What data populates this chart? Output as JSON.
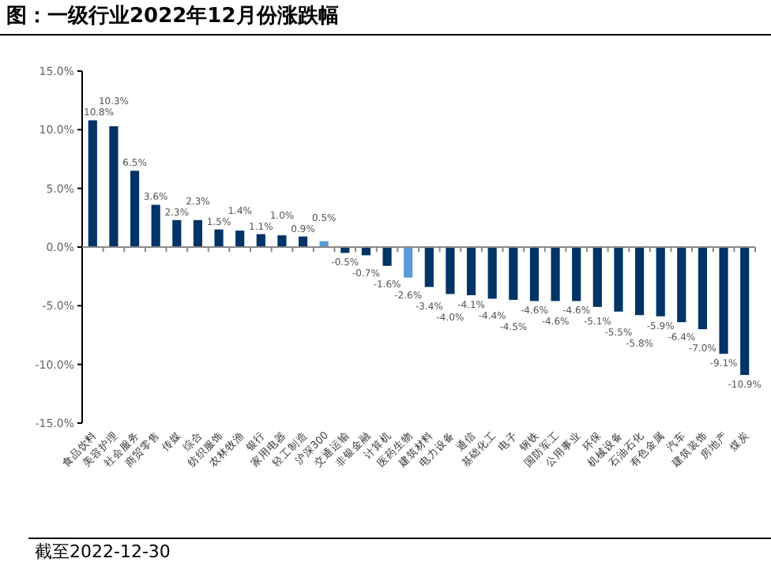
{
  "chart_data": {
    "type": "bar",
    "title": "图：一级行业2022年12月份涨跌幅",
    "categories": [
      "食品饮料",
      "美容护理",
      "社会服务",
      "商贸零售",
      "传媒",
      "综合",
      "纺织服饰",
      "农林牧渔",
      "银行",
      "家用电器",
      "轻工制造",
      "沪深300",
      "交通运输",
      "非银金融",
      "计算机",
      "医药生物",
      "建筑材料",
      "电力设备",
      "通信",
      "基础化工",
      "电子",
      "钢铁",
      "国防军工",
      "公用事业",
      "环保",
      "机械设备",
      "石油石化",
      "有色金属",
      "汽车",
      "建筑装饰",
      "房地产",
      "煤炭"
    ],
    "values": [
      10.8,
      10.3,
      6.5,
      3.6,
      2.3,
      2.3,
      1.5,
      1.4,
      1.1,
      1.0,
      0.9,
      0.5,
      -0.5,
      -0.7,
      -1.6,
      -2.6,
      -3.4,
      -4.0,
      -4.1,
      -4.4,
      -4.5,
      -4.6,
      -4.6,
      -4.6,
      -5.1,
      -5.5,
      -5.8,
      -5.9,
      -6.4,
      -7.0,
      -9.1,
      -10.9
    ],
    "colors": [
      "#003366",
      "#003366",
      "#003366",
      "#003366",
      "#003366",
      "#003366",
      "#003366",
      "#003366",
      "#003366",
      "#003366",
      "#003366",
      "#5b9bd5",
      "#003366",
      "#003366",
      "#003366",
      "#5b9bd5",
      "#003366",
      "#003366",
      "#003366",
      "#003366",
      "#003366",
      "#003366",
      "#003366",
      "#003366",
      "#003366",
      "#003366",
      "#003366",
      "#003366",
      "#003366",
      "#003366",
      "#003366",
      "#003366"
    ],
    "value_labels": [
      "10.8%",
      "10.3%",
      "6.5%",
      "3.6%",
      "2.3%",
      "2.3%",
      "1.5%",
      "1.4%",
      "1.1%",
      "1.0%",
      "0.9%",
      "0.5%",
      "-0.5%",
      "-0.7%",
      "-1.6%",
      "-2.6%",
      "-3.4%",
      "-4.0%",
      "-4.1%",
      "-4.4%",
      "-4.5%",
      "-4.6%",
      "-4.6%",
      "-4.6%",
      "-5.1%",
      "-5.5%",
      "-5.8%",
      "-5.9%",
      "-6.4%",
      "-7.0%",
      "-9.1%",
      "-10.9%"
    ],
    "ylim": [
      -15,
      15
    ],
    "yticks": [
      {
        "value": 15,
        "label": "15.0%"
      },
      {
        "value": 10,
        "label": "10.0%"
      },
      {
        "value": 5,
        "label": "5.0%"
      },
      {
        "value": 0,
        "label": "0.0%"
      },
      {
        "value": -5,
        "label": "-5.0%"
      },
      {
        "value": -10,
        "label": "-10.0%"
      },
      {
        "value": -15,
        "label": "-15.0%"
      }
    ],
    "annotations": [
      "截至2022-12-30"
    ]
  }
}
